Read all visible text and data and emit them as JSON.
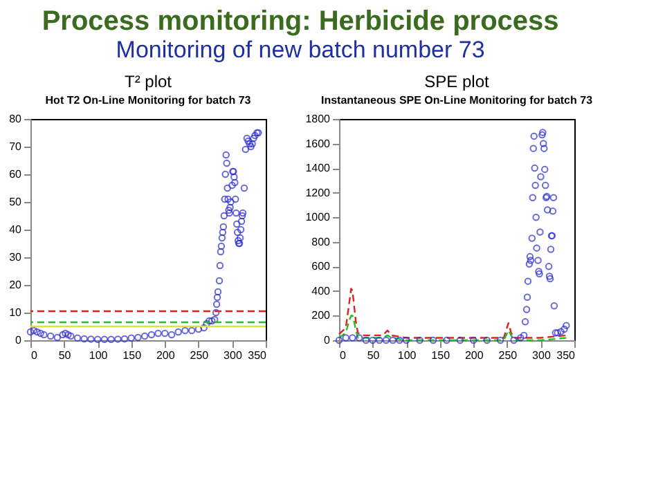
{
  "chart_data": [
    {
      "type": "scatter",
      "title": "Hot T2 On-Line Monitoring for batch 73",
      "subtitle": "T² plot",
      "annotations": [
        "Process monitoring: Herbicide process",
        "Monitoring of new batch number 73"
      ],
      "xlim": [
        0,
        350
      ],
      "xticks": [
        0,
        50,
        100,
        150,
        200,
        250,
        300,
        350
      ],
      "ylim": [
        0,
        80
      ],
      "yticks": [
        0,
        10,
        20,
        30,
        40,
        50,
        60,
        70,
        80
      ],
      "grid": false,
      "marker": "circle",
      "series": [
        {
          "color": "#2a2ad0",
          "x": [
            0,
            5,
            10,
            15,
            20,
            30,
            40,
            48,
            52,
            56,
            60,
            70,
            80,
            90,
            100,
            110,
            120,
            130,
            140,
            150,
            160,
            170,
            180,
            190,
            200,
            210,
            220,
            230,
            240,
            250,
            258,
            262,
            266,
            270,
            274,
            276,
            277,
            278,
            279,
            281,
            282,
            283,
            284,
            285,
            286,
            287,
            288,
            289,
            290,
            291,
            292,
            293,
            294,
            295,
            296,
            297,
            298,
            300,
            301,
            302,
            303,
            304,
            305,
            306,
            307,
            308,
            309,
            310,
            311,
            312,
            313,
            314,
            315,
            316,
            318,
            320,
            322,
            324,
            326,
            328,
            330,
            332,
            334,
            337,
            339
          ],
          "values": [
            3,
            3.5,
            3,
            2.5,
            2,
            1.5,
            1,
            2,
            2.5,
            2,
            1.5,
            0.8,
            0.5,
            0.4,
            0.3,
            0.3,
            0.3,
            0.4,
            0.5,
            0.8,
            1,
            1.5,
            2,
            2.5,
            2.5,
            2,
            3,
            3.5,
            3.5,
            4,
            4.5,
            6,
            7,
            7,
            7.5,
            10,
            13,
            15.5,
            17.5,
            21.5,
            27,
            32,
            34,
            37,
            39,
            41,
            45,
            51,
            60,
            67,
            64,
            55,
            51,
            47,
            46,
            48,
            50,
            56,
            61,
            61,
            59,
            57,
            51,
            46,
            42,
            39,
            36,
            35,
            35,
            37,
            40,
            43,
            45,
            46,
            55,
            69,
            73,
            72,
            71,
            70,
            71,
            73,
            74,
            75,
            75
          ]
        }
      ],
      "ref_lines": [
        {
          "axis": "y",
          "value": 10.5,
          "color": "#e02020",
          "line_style": "dashed"
        },
        {
          "axis": "y",
          "value": 6.5,
          "color": "#20c020",
          "line_style": "dashed"
        },
        {
          "axis": "y",
          "value": 5,
          "color": "#e0e040",
          "line_style": "solid"
        }
      ]
    },
    {
      "type": "scatter",
      "title": "Instantaneous SPE On-Line Monitoring for batch 73",
      "subtitle": "SPE plot",
      "xlim": [
        0,
        350
      ],
      "xticks": [
        0,
        50,
        100,
        150,
        200,
        250,
        300,
        350
      ],
      "ylim": [
        0,
        1800
      ],
      "yticks": [
        0,
        200,
        400,
        600,
        800,
        1000,
        1200,
        1400,
        1600,
        1800
      ],
      "grid": false,
      "series": [
        {
          "type": "line",
          "line_style": "dashed",
          "color": "#e02020",
          "x": [
            0,
            10,
            15,
            18,
            20,
            22,
            25,
            28,
            35,
            50,
            65,
            72,
            78,
            100,
            150,
            200,
            245,
            252,
            256,
            260,
            275,
            300,
            340
          ],
          "values": [
            50,
            100,
            300,
            420,
            400,
            300,
            150,
            60,
            40,
            40,
            40,
            80,
            40,
            20,
            20,
            20,
            20,
            140,
            60,
            20,
            20,
            20,
            40
          ]
        },
        {
          "type": "line",
          "line_style": "dashed",
          "color": "#20c020",
          "x": [
            0,
            10,
            15,
            18,
            20,
            22,
            25,
            28,
            35,
            50,
            65,
            72,
            78,
            100,
            150,
            200,
            245,
            252,
            256,
            260,
            275,
            300,
            340
          ],
          "values": [
            20,
            60,
            160,
            200,
            200,
            160,
            80,
            20,
            20,
            20,
            20,
            40,
            20,
            0,
            0,
            0,
            0,
            80,
            40,
            0,
            0,
            0,
            20
          ]
        },
        {
          "type": "scatter",
          "marker": "circle",
          "color": "#2a2ad0",
          "x": [
            0,
            10,
            20,
            30,
            40,
            50,
            60,
            70,
            80,
            90,
            100,
            120,
            140,
            160,
            180,
            200,
            220,
            240,
            260,
            270,
            275,
            277,
            279,
            280,
            281,
            283,
            284,
            285,
            287,
            288,
            289,
            290,
            291,
            292,
            293,
            294,
            296,
            297,
            298,
            299,
            300,
            302,
            303,
            304,
            305,
            306,
            307,
            308,
            309,
            310,
            312,
            313,
            314,
            315,
            316,
            317,
            318,
            319,
            320,
            322,
            325,
            330,
            335,
            338
          ],
          "values": [
            0,
            20,
            20,
            20,
            0,
            0,
            0,
            0,
            0,
            0,
            0,
            0,
            0,
            0,
            0,
            0,
            0,
            0,
            0,
            20,
            40,
            150,
            250,
            350,
            480,
            620,
            680,
            650,
            830,
            1160,
            1560,
            1660,
            1400,
            1260,
            1000,
            750,
            650,
            560,
            540,
            880,
            1330,
            1670,
            1690,
            1600,
            1560,
            1390,
            1260,
            1160,
            1170,
            1060,
            600,
            520,
            500,
            740,
            850,
            850,
            1050,
            1160,
            280,
            60,
            60,
            70,
            90,
            120
          ]
        }
      ]
    }
  ]
}
